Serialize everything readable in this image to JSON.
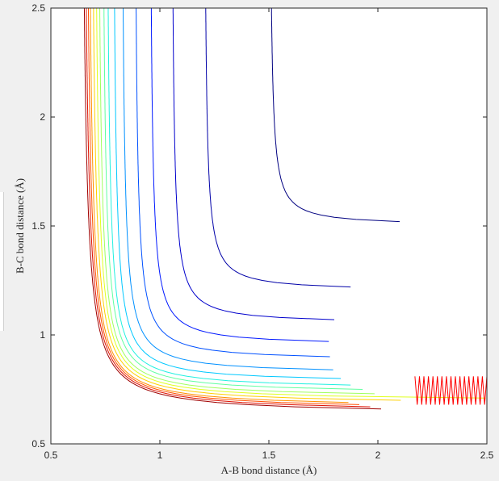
{
  "chart_data": {
    "type": "contour",
    "title": "",
    "xlabel": "A-B bond distance (Å)",
    "ylabel": "B-C bond distance (Å)",
    "xlim": [
      0.5,
      2.5
    ],
    "ylim": [
      0.5,
      2.5
    ],
    "xticks": [
      "0.5",
      "1",
      "1.5",
      "2",
      "2.5"
    ],
    "yticks": [
      "0.5",
      "1",
      "1.5",
      "2",
      "2.5"
    ],
    "grid": false,
    "colormap": "jet",
    "surface": "LEPS-like potential energy surface for A + BC collinear reaction",
    "levels": [
      {
        "x_asym": 1.5,
        "y_asym": 1.5,
        "color": "#000080"
      },
      {
        "x_asym": 1.2,
        "y_asym": 1.2,
        "color": "#0000a8"
      },
      {
        "x_asym": 1.05,
        "y_asym": 1.05,
        "color": "#0000cc"
      },
      {
        "x_asym": 0.95,
        "y_asym": 0.95,
        "color": "#0018ff"
      },
      {
        "x_asym": 0.88,
        "y_asym": 0.88,
        "color": "#0050ff"
      },
      {
        "x_asym": 0.82,
        "y_asym": 0.82,
        "color": "#0090ff"
      },
      {
        "x_asym": 0.78,
        "y_asym": 0.78,
        "color": "#00c8ff"
      },
      {
        "x_asym": 0.75,
        "y_asym": 0.75,
        "color": "#20f0e0"
      },
      {
        "x_asym": 0.73,
        "y_asym": 0.73,
        "color": "#60ffa0"
      },
      {
        "x_asym": 0.71,
        "y_asym": 0.71,
        "color": "#a0ff60"
      },
      {
        "x_asym": 0.695,
        "y_asym": 0.695,
        "color": "#e0ff20"
      },
      {
        "x_asym": 0.68,
        "y_asym": 0.68,
        "color": "#ffd000"
      },
      {
        "x_asym": 0.665,
        "y_asym": 0.665,
        "color": "#ff9000"
      },
      {
        "x_asym": 0.655,
        "y_asym": 0.655,
        "color": "#ff5000"
      },
      {
        "x_asym": 0.645,
        "y_asym": 0.645,
        "color": "#e01000"
      },
      {
        "x_asym": 0.635,
        "y_asym": 0.635,
        "color": "#a00000"
      }
    ],
    "trajectory": {
      "color": "#ff0000",
      "x_range": [
        2.17,
        2.5
      ],
      "y_range": [
        0.68,
        0.81
      ],
      "oscillations": 16
    }
  }
}
